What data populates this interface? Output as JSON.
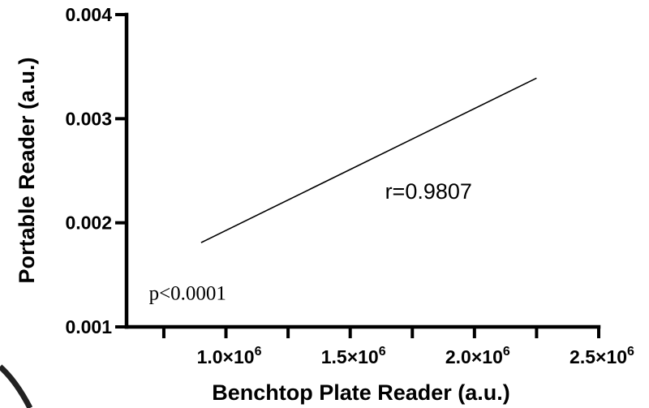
{
  "chart_data": {
    "type": "line",
    "xlabel": "Benchtop Plate Reader (a.u.)",
    "ylabel": "Portable Reader (a.u.)",
    "xlim": [
      600000,
      2500000
    ],
    "ylim": [
      0.001,
      0.004
    ],
    "x_ticks": [
      {
        "value": 1000000,
        "mantissa": "1.0×10",
        "exp": "6"
      },
      {
        "value": 1500000,
        "mantissa": "1.5×10",
        "exp": "6"
      },
      {
        "value": 2000000,
        "mantissa": "2.0×10",
        "exp": "6"
      },
      {
        "value": 2500000,
        "mantissa": "2.5×10",
        "exp": "6"
      }
    ],
    "x_minor_ticks": [
      750000,
      1250000,
      1750000,
      2250000
    ],
    "y_ticks": [
      {
        "value": 0.001,
        "label": "0.001"
      },
      {
        "value": 0.002,
        "label": "0.002"
      },
      {
        "value": 0.003,
        "label": "0.003"
      },
      {
        "value": 0.004,
        "label": "0.004"
      }
    ],
    "series": [
      {
        "x": [
          900000,
          2250000
        ],
        "y": [
          0.00181,
          0.00339
        ]
      }
    ],
    "annotations": [
      {
        "text": "r=0.9807",
        "x": 1640000,
        "y": 0.00223,
        "style": "sans"
      },
      {
        "text": "p<0.0001",
        "x": 690000,
        "y": 0.00126,
        "style": "serif"
      }
    ],
    "grid": false,
    "legend": "none"
  }
}
